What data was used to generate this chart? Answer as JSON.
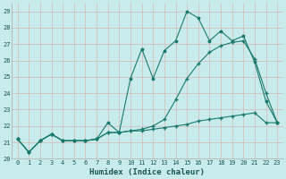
{
  "xlabel": "Humidex (Indice chaleur)",
  "background_color": "#c8ebeb",
  "grid_color": "#d4b8b8",
  "line_color": "#1a7a6e",
  "xlim": [
    -0.5,
    23.5
  ],
  "ylim": [
    20,
    29.5
  ],
  "xticks": [
    0,
    1,
    2,
    3,
    4,
    5,
    6,
    7,
    8,
    9,
    10,
    11,
    12,
    13,
    14,
    15,
    16,
    17,
    18,
    19,
    20,
    21,
    22,
    23
  ],
  "yticks": [
    20,
    21,
    22,
    23,
    24,
    25,
    26,
    27,
    28,
    29
  ],
  "series1_x": [
    0,
    1,
    2,
    3,
    4,
    5,
    6,
    7,
    8,
    9,
    10,
    11,
    12,
    13,
    14,
    15,
    16,
    17,
    18,
    19,
    20,
    21,
    22,
    23
  ],
  "series1_y": [
    21.2,
    20.4,
    21.1,
    21.5,
    21.1,
    21.1,
    21.1,
    21.2,
    22.2,
    21.6,
    24.9,
    26.7,
    24.9,
    26.6,
    27.2,
    29.0,
    28.6,
    27.2,
    27.8,
    27.2,
    27.5,
    25.9,
    23.5,
    22.2
  ],
  "series2_x": [
    0,
    1,
    2,
    3,
    4,
    5,
    6,
    7,
    8,
    9,
    10,
    11,
    12,
    13,
    14,
    15,
    16,
    17,
    18,
    19,
    20,
    21,
    22,
    23
  ],
  "series2_y": [
    21.2,
    20.4,
    21.1,
    21.5,
    21.1,
    21.1,
    21.1,
    21.2,
    21.6,
    21.6,
    21.7,
    21.7,
    21.8,
    21.9,
    22.0,
    22.1,
    22.3,
    22.4,
    22.5,
    22.6,
    22.7,
    22.8,
    22.2,
    22.2
  ],
  "series3_x": [
    0,
    1,
    2,
    3,
    4,
    5,
    6,
    7,
    8,
    9,
    10,
    11,
    12,
    13,
    14,
    15,
    16,
    17,
    18,
    19,
    20,
    21,
    22,
    23
  ],
  "series3_y": [
    21.2,
    20.4,
    21.1,
    21.5,
    21.1,
    21.1,
    21.1,
    21.2,
    21.6,
    21.6,
    21.7,
    21.8,
    22.0,
    22.4,
    23.6,
    24.9,
    25.8,
    26.5,
    26.9,
    27.1,
    27.2,
    26.1,
    24.0,
    22.2
  ],
  "xlabel_fontsize": 6.5,
  "tick_fontsize": 5.0
}
